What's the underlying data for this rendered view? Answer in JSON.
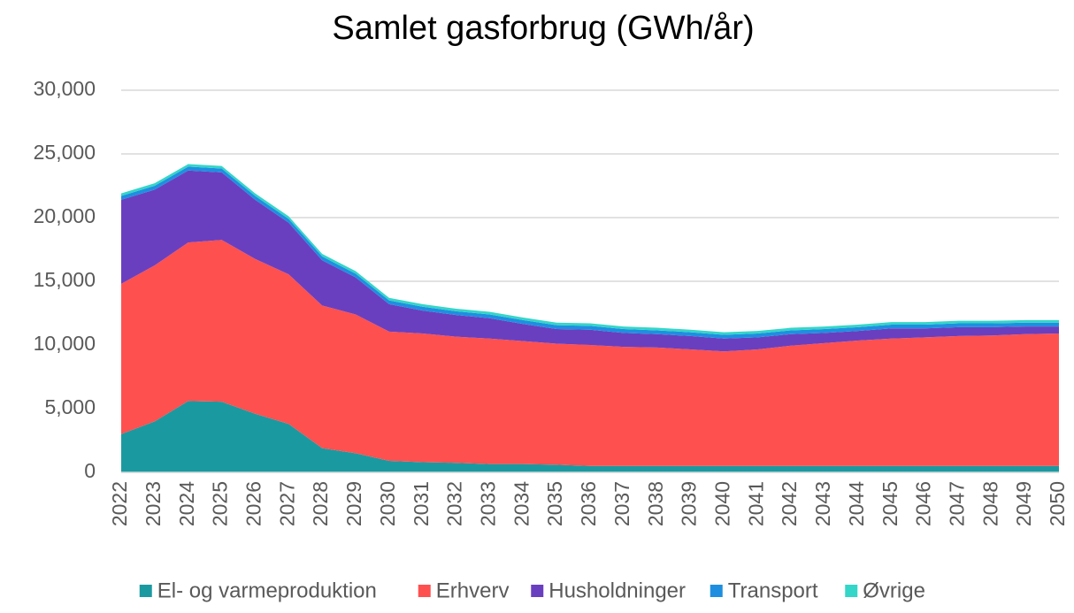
{
  "chart_data": {
    "type": "area",
    "stacked": true,
    "title": "Samlet gasforbrug (GWh/år)",
    "categories": [
      "2022",
      "2023",
      "2024",
      "2025",
      "2026",
      "2027",
      "2028",
      "2029",
      "2030",
      "2031",
      "2032",
      "2033",
      "2034",
      "2035",
      "2036",
      "2037",
      "2038",
      "2039",
      "2040",
      "2041",
      "2042",
      "2043",
      "2044",
      "2045",
      "2046",
      "2047",
      "2048",
      "2049",
      "2050"
    ],
    "series": [
      {
        "name": "El- og varmeproduktion",
        "color": "#1a9aa0",
        "values": [
          3000,
          4000,
          5600,
          5550,
          4600,
          3800,
          1900,
          1500,
          900,
          800,
          750,
          650,
          650,
          600,
          500,
          500,
          500,
          500,
          500,
          500,
          500,
          500,
          500,
          500,
          500,
          500,
          500,
          500,
          500
        ]
      },
      {
        "name": "Erhverv",
        "color": "#ff5050",
        "values": [
          11800,
          12250,
          12450,
          12700,
          12150,
          11750,
          11200,
          10900,
          10150,
          10100,
          9900,
          9850,
          9650,
          9500,
          9500,
          9350,
          9300,
          9150,
          9000,
          9150,
          9450,
          9650,
          9850,
          10000,
          10100,
          10200,
          10250,
          10350,
          10400
        ]
      },
      {
        "name": "Husholdninger",
        "color": "#6a3fbf",
        "values": [
          6600,
          5950,
          5650,
          5300,
          4650,
          4050,
          3550,
          2900,
          2150,
          1800,
          1700,
          1600,
          1350,
          1150,
          1200,
          1100,
          1050,
          1050,
          1000,
          950,
          900,
          800,
          750,
          800,
          700,
          700,
          650,
          600,
          550
        ]
      },
      {
        "name": "Transport",
        "color": "#1e8fe0",
        "values": [
          300,
          300,
          300,
          300,
          300,
          300,
          300,
          300,
          300,
          300,
          300,
          300,
          300,
          300,
          300,
          300,
          300,
          300,
          300,
          300,
          300,
          300,
          300,
          300,
          300,
          300,
          300,
          300,
          300
        ]
      },
      {
        "name": "Øvrige",
        "color": "#33d6c8",
        "values": [
          200,
          200,
          200,
          200,
          200,
          200,
          200,
          200,
          200,
          200,
          200,
          200,
          200,
          200,
          200,
          200,
          200,
          200,
          200,
          200,
          200,
          200,
          200,
          200,
          200,
          200,
          200,
          200,
          200
        ]
      }
    ],
    "ylim": [
      0,
      30000
    ],
    "yticks": [
      0,
      {
        "value": 5000,
        "label": "5,000"
      },
      {
        "value": 10000,
        "label": "10,000"
      },
      {
        "value": 15000,
        "label": "15,000"
      },
      {
        "value": 20000,
        "label": "20,000"
      },
      {
        "value": 25000,
        "label": "25,000"
      },
      {
        "value": 30000,
        "label": "30,000"
      }
    ],
    "grid": true,
    "legend": "bottom"
  }
}
